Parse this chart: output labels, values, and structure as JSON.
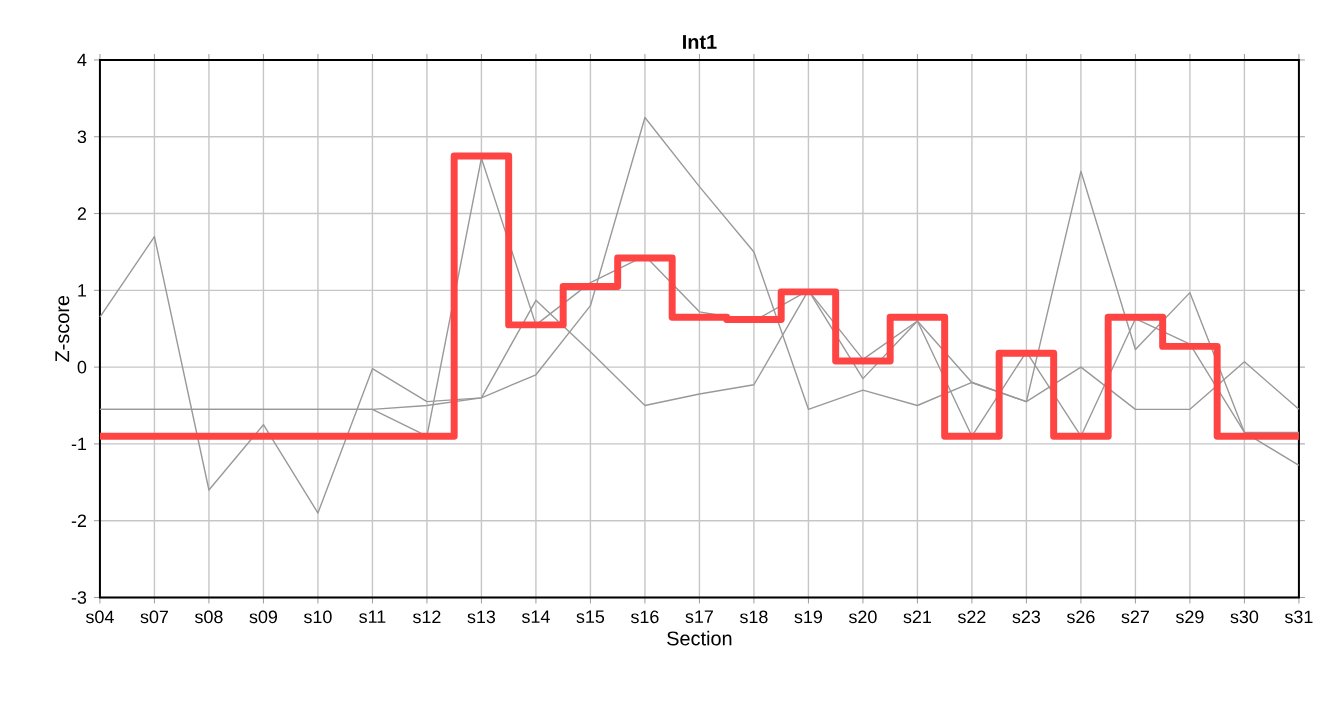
{
  "chart_data": {
    "type": "line",
    "title": "Int1",
    "xlabel": "Section",
    "ylabel": "Z-score",
    "categories": [
      "s04",
      "s07",
      "s08",
      "s09",
      "s10",
      "s11",
      "s12",
      "s13",
      "s14",
      "s15",
      "s16",
      "s17",
      "s18",
      "s19",
      "s20",
      "s21",
      "s22",
      "s23",
      "s26",
      "s27",
      "s29",
      "s30",
      "s31"
    ],
    "ylim": [
      -3,
      4
    ],
    "yticks": [
      -3,
      -2,
      -1,
      0,
      1,
      2,
      3,
      4
    ],
    "grid": true,
    "marker": "none",
    "series": [
      {
        "color": "#999999",
        "values": [
          0.65,
          1.7,
          -1.6,
          -0.75,
          -1.9,
          -0.02,
          -0.45,
          -0.4,
          0.87,
          0.2,
          -0.5,
          -0.35,
          -0.23,
          1.0,
          -0.15,
          0.6,
          -0.2,
          -0.45,
          2.55,
          0.23,
          0.97,
          -0.85,
          -1.28
        ]
      },
      {
        "color": "#999999",
        "values": [
          -0.55,
          -0.55,
          -0.55,
          -0.55,
          -0.55,
          -0.55,
          -0.5,
          -0.4,
          -0.1,
          0.8,
          3.25,
          2.35,
          1.5,
          -0.55,
          -0.3,
          -0.5,
          -0.2,
          -0.45,
          0.0,
          -0.55,
          -0.55,
          0.07,
          -0.55
        ]
      },
      {
        "color": "#999999",
        "values": [
          -0.55,
          -0.55,
          -0.55,
          -0.55,
          -0.55,
          -0.55,
          -0.9,
          2.72,
          0.55,
          1.1,
          1.45,
          0.72,
          0.6,
          1.0,
          0.1,
          0.6,
          -0.9,
          0.2,
          -0.9,
          0.63,
          0.3,
          -0.85,
          -0.85
        ]
      },
      {
        "type": "step",
        "color": "#ff4444",
        "values": [
          -0.9,
          -0.9,
          -0.9,
          -0.9,
          -0.9,
          -0.9,
          -0.9,
          2.75,
          0.55,
          1.05,
          1.42,
          0.65,
          0.62,
          0.98,
          0.08,
          0.65,
          -0.9,
          0.18,
          -0.9,
          0.65,
          0.27,
          -0.9,
          -0.9
        ]
      }
    ]
  }
}
